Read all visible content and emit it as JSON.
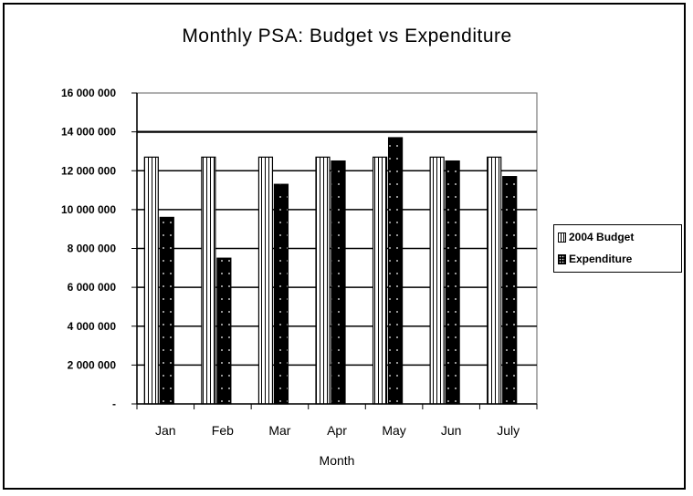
{
  "chart_data": {
    "type": "bar",
    "title": "Monthly PSA: Budget vs Expenditure",
    "xlabel": "Month",
    "ylabel": "",
    "categories": [
      "Jan",
      "Feb",
      "Mar",
      "Apr",
      "May",
      "Jun",
      "July"
    ],
    "series": [
      {
        "name": "2004 Budget",
        "values": [
          12700000,
          12700000,
          12700000,
          12700000,
          12700000,
          12700000,
          12700000
        ],
        "fill": "vertical-stripes",
        "color": "#ffffff"
      },
      {
        "name": "Expenditure",
        "values": [
          9600000,
          7500000,
          11300000,
          12500000,
          13700000,
          12500000,
          11700000
        ],
        "fill": "dotted-black",
        "color": "#000000"
      }
    ],
    "ylim": [
      0,
      16000000
    ],
    "yticks": [
      0,
      2000000,
      4000000,
      6000000,
      8000000,
      10000000,
      12000000,
      14000000,
      16000000
    ],
    "ytick_labels": [
      "-",
      "2 000 000",
      "4 000 000",
      "6 000 000",
      "8 000 000",
      "10 000 000",
      "12 000 000",
      "14 000 000",
      "16 000 000"
    ],
    "grid": true,
    "emphasized_gridline": 14000000,
    "legend_position": "right"
  },
  "legend": {
    "budget_label": "2004 Budget",
    "expenditure_label": "Expenditure"
  }
}
